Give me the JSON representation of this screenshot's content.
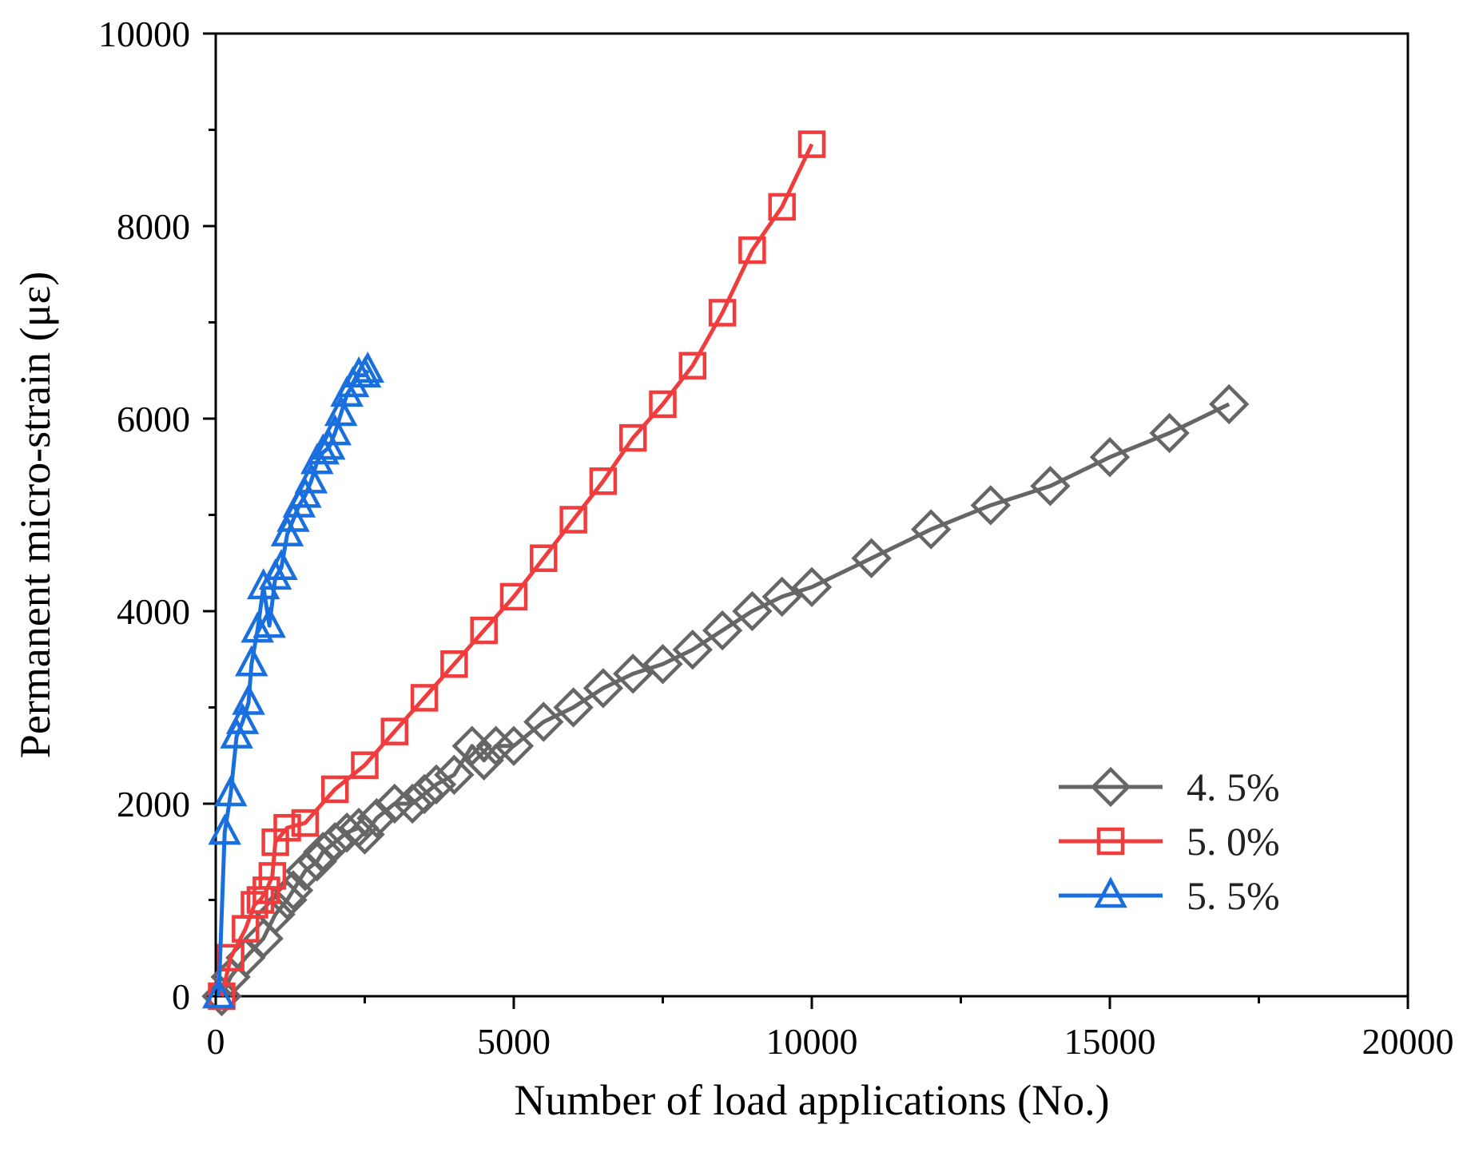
{
  "chart_data": {
    "type": "line",
    "title": "",
    "xlabel": "Number of load applications (No.)",
    "ylabel": "Permanent micro-strain (με)",
    "xlim": [
      0,
      20000
    ],
    "ylim": [
      0,
      10000
    ],
    "xticks": [
      0,
      5000,
      10000,
      15000,
      20000
    ],
    "yticks": [
      0,
      2000,
      4000,
      6000,
      8000,
      10000
    ],
    "xtick_labels": [
      "0",
      "5000",
      "10000",
      "15000",
      "20000"
    ],
    "ytick_labels": [
      "0",
      "2000",
      "4000",
      "6000",
      "8000",
      "10000"
    ],
    "grid": false,
    "legend_position": "bottom-right",
    "series": [
      {
        "name": "4. 5%",
        "color": "#666666",
        "marker": "diamond",
        "x": [
          100,
          250,
          500,
          800,
          1000,
          1200,
          1300,
          1500,
          1700,
          1800,
          2000,
          2200,
          2400,
          2500,
          2700,
          3000,
          3300,
          3500,
          3700,
          4000,
          4300,
          4500,
          4700,
          5000,
          5500,
          6000,
          6500,
          7000,
          7500,
          8000,
          8500,
          9000,
          9500,
          10000,
          11000,
          12000,
          13000,
          14000,
          15000,
          16000,
          17000
        ],
        "y": [
          0,
          200,
          400,
          600,
          850,
          1000,
          1100,
          1300,
          1400,
          1500,
          1600,
          1700,
          1750,
          1680,
          1850,
          2000,
          2000,
          2100,
          2200,
          2300,
          2600,
          2450,
          2600,
          2600,
          2850,
          3000,
          3200,
          3350,
          3450,
          3600,
          3800,
          4000,
          4150,
          4250,
          4550,
          4850,
          5100,
          5300,
          5600,
          5850,
          6150
        ]
      },
      {
        "name": "5. 0%",
        "color": "#f03c3c",
        "marker": "square",
        "x": [
          100,
          250,
          500,
          650,
          750,
          850,
          950,
          1000,
          1200,
          1500,
          2000,
          2500,
          3000,
          3500,
          4000,
          4500,
          5000,
          5500,
          6000,
          6500,
          7000,
          7500,
          8000,
          8500,
          9000,
          9500,
          10000
        ],
        "y": [
          0,
          400,
          700,
          950,
          1000,
          1100,
          1250,
          1600,
          1750,
          1800,
          2150,
          2400,
          2750,
          3100,
          3450,
          3800,
          4150,
          4550,
          4950,
          5350,
          5800,
          6150,
          6550,
          7100,
          7750,
          8200,
          8850
        ]
      },
      {
        "name": "5. 5%",
        "color": "#1a6fdf",
        "marker": "triangle",
        "x": [
          50,
          150,
          250,
          350,
          450,
          550,
          600,
          700,
          800,
          900,
          1000,
          1100,
          1200,
          1300,
          1400,
          1500,
          1600,
          1700,
          1800,
          1900,
          2000,
          2100,
          2200,
          2300,
          2400,
          2500,
          2550
        ],
        "y": [
          0,
          1700,
          2100,
          2700,
          2850,
          3050,
          3450,
          3800,
          4250,
          3850,
          4350,
          4450,
          4800,
          4950,
          5100,
          5200,
          5350,
          5550,
          5650,
          5700,
          5850,
          6050,
          6250,
          6350,
          6450,
          6450,
          6500
        ]
      }
    ]
  }
}
